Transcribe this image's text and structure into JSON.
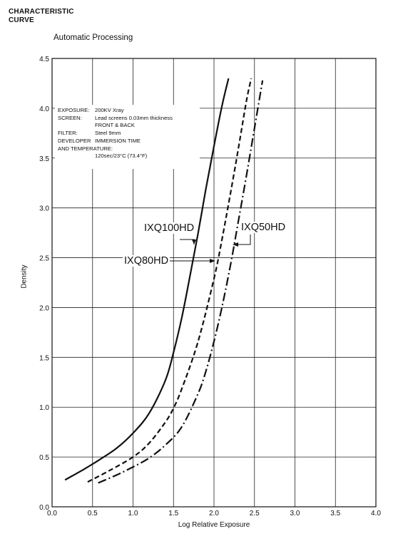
{
  "header": {
    "line1": "CHARACTERISTIC",
    "line2": "CURVE"
  },
  "chart_data": {
    "type": "line",
    "title": "Automatic Processing",
    "xlabel": "Log Relative Exposure",
    "ylabel": "Density",
    "xlim": [
      0,
      4.0
    ],
    "ylim": [
      0,
      4.5
    ],
    "xticks": [
      "0.0",
      "0.5",
      "1.0",
      "1.5",
      "2.0",
      "2.5",
      "3.0",
      "3.5",
      "4.0"
    ],
    "yticks": [
      "0.0",
      "0.5",
      "1.0",
      "1.5",
      "2.0",
      "2.5",
      "3.0",
      "3.5",
      "4.0",
      "4.5"
    ],
    "grid": true,
    "legend": "inline labels",
    "series": [
      {
        "name": "IXQ100HD",
        "style": "solid",
        "x": [
          0.16,
          0.4,
          0.6,
          0.8,
          1.0,
          1.2,
          1.4,
          1.5,
          1.6,
          1.7,
          1.8,
          1.9,
          2.0,
          2.1,
          2.18
        ],
        "y": [
          0.27,
          0.38,
          0.48,
          0.59,
          0.74,
          0.94,
          1.27,
          1.55,
          1.89,
          2.3,
          2.73,
          3.19,
          3.62,
          4.03,
          4.3
        ]
      },
      {
        "name": "IXQ80HD",
        "style": "dashed",
        "x": [
          0.44,
          0.7,
          1.0,
          1.2,
          1.4,
          1.5,
          1.6,
          1.8,
          2.0,
          2.1,
          2.2,
          2.3,
          2.4,
          2.46
        ],
        "y": [
          0.25,
          0.36,
          0.5,
          0.64,
          0.85,
          0.99,
          1.18,
          1.65,
          2.29,
          2.69,
          3.13,
          3.59,
          4.07,
          4.3
        ]
      },
      {
        "name": "IXQ50HD",
        "style": "dashdot",
        "x": [
          0.57,
          0.8,
          1.0,
          1.2,
          1.4,
          1.6,
          1.8,
          1.9,
          2.0,
          2.1,
          2.2,
          2.3,
          2.4,
          2.5,
          2.6
        ],
        "y": [
          0.24,
          0.32,
          0.4,
          0.49,
          0.62,
          0.8,
          1.13,
          1.36,
          1.66,
          2.01,
          2.41,
          2.86,
          3.32,
          3.8,
          4.28
        ]
      }
    ],
    "annotation_lines": [
      "EXPOSURE:",
      "200KV Xray",
      "SCREEN:",
      "Lead screens 0.03mm thickness",
      "FRONT & BACK",
      "FILTER:",
      "Steel 9mm",
      "DEVELOPER",
      "IMMERSION TIME",
      "AND TEMPERATURE:",
      "120sec/23°C (73.4°F)"
    ]
  }
}
